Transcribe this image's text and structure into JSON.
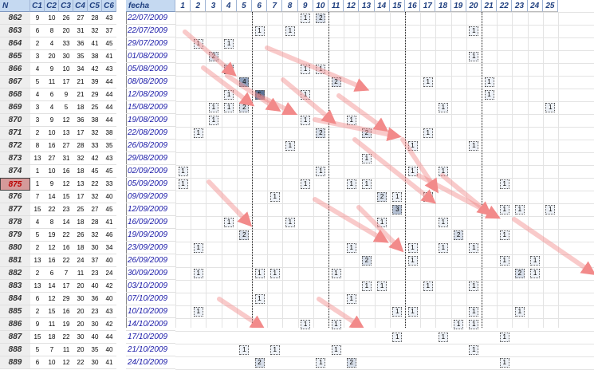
{
  "header": {
    "n": "N",
    "c": [
      "C1",
      "C2",
      "C3",
      "C4",
      "C5",
      "C6"
    ],
    "fecha": "fecha",
    "cols": [
      "1",
      "2",
      "3",
      "4",
      "5",
      "6",
      "7",
      "8",
      "9",
      "10",
      "11",
      "12",
      "13",
      "14",
      "15",
      "16",
      "17",
      "18",
      "19",
      "20",
      "21",
      "22",
      "23",
      "24",
      "25"
    ]
  },
  "selected_row": "875",
  "rows": [
    {
      "n": "862",
      "c": [
        "9",
        "10",
        "26",
        "27",
        "28",
        "43"
      ],
      "d": "22/07/2009",
      "m": [
        [
          9,
          "1"
        ],
        [
          10,
          "2"
        ]
      ]
    },
    {
      "n": "863",
      "c": [
        "6",
        "8",
        "20",
        "31",
        "32",
        "37"
      ],
      "d": "22/07/2009",
      "m": [
        [
          6,
          "1"
        ],
        [
          8,
          "1"
        ],
        [
          20,
          "1"
        ]
      ]
    },
    {
      "n": "864",
      "c": [
        "2",
        "4",
        "33",
        "36",
        "41",
        "45"
      ],
      "d": "29/07/2009",
      "m": [
        [
          2,
          "1"
        ],
        [
          4,
          "1"
        ]
      ]
    },
    {
      "n": "865",
      "c": [
        "3",
        "20",
        "30",
        "35",
        "38",
        "41"
      ],
      "d": "01/08/2009",
      "m": [
        [
          3,
          "2"
        ],
        [
          20,
          "1"
        ]
      ]
    },
    {
      "n": "866",
      "c": [
        "4",
        "9",
        "10",
        "34",
        "42",
        "43"
      ],
      "d": "05/08/2009",
      "m": [
        [
          4,
          "3"
        ],
        [
          9,
          "1"
        ],
        [
          10,
          "1"
        ]
      ]
    },
    {
      "n": "867",
      "c": [
        "5",
        "11",
        "17",
        "21",
        "39",
        "44"
      ],
      "d": "08/08/2009",
      "m": [
        [
          5,
          "4"
        ],
        [
          11,
          "2"
        ],
        [
          17,
          "1"
        ],
        [
          21,
          "1"
        ]
      ]
    },
    {
      "n": "868",
      "c": [
        "4",
        "6",
        "9",
        "21",
        "29",
        "44"
      ],
      "d": "12/08/2009",
      "m": [
        [
          4,
          "1"
        ],
        [
          6,
          "5"
        ],
        [
          9,
          "1"
        ],
        [
          21,
          "1"
        ]
      ]
    },
    {
      "n": "869",
      "c": [
        "3",
        "4",
        "5",
        "18",
        "25",
        "44"
      ],
      "d": "15/08/2009",
      "m": [
        [
          3,
          "1"
        ],
        [
          4,
          "1"
        ],
        [
          5,
          "2"
        ],
        [
          18,
          "1"
        ],
        [
          25,
          "1"
        ]
      ]
    },
    {
      "n": "870",
      "c": [
        "3",
        "9",
        "12",
        "36",
        "38",
        "44"
      ],
      "d": "19/08/2009",
      "m": [
        [
          3,
          "1"
        ],
        [
          9,
          "1"
        ],
        [
          12,
          "1"
        ]
      ]
    },
    {
      "n": "871",
      "c": [
        "2",
        "10",
        "13",
        "17",
        "32",
        "38"
      ],
      "d": "22/08/2009",
      "m": [
        [
          2,
          "1"
        ],
        [
          10,
          "2"
        ],
        [
          13,
          "2"
        ],
        [
          17,
          "1"
        ]
      ]
    },
    {
      "n": "872",
      "c": [
        "8",
        "16",
        "27",
        "28",
        "33",
        "35"
      ],
      "d": "26/08/2009",
      "m": [
        [
          8,
          "1"
        ],
        [
          16,
          "1"
        ],
        [
          20,
          "1"
        ]
      ]
    },
    {
      "n": "873",
      "c": [
        "13",
        "27",
        "31",
        "32",
        "42",
        "43"
      ],
      "d": "29/08/2009",
      "m": [
        [
          13,
          "1"
        ]
      ]
    },
    {
      "n": "874",
      "c": [
        "1",
        "10",
        "16",
        "18",
        "45",
        "45"
      ],
      "d": "02/09/2009",
      "m": [
        [
          1,
          "1"
        ],
        [
          10,
          "1"
        ],
        [
          16,
          "1"
        ],
        [
          18,
          "1"
        ]
      ]
    },
    {
      "n": "875",
      "c": [
        "1",
        "9",
        "12",
        "13",
        "22",
        "33"
      ],
      "d": "05/09/2009",
      "m": [
        [
          1,
          "1"
        ],
        [
          9,
          "1"
        ],
        [
          12,
          "1"
        ],
        [
          13,
          "1"
        ],
        [
          22,
          "1"
        ]
      ]
    },
    {
      "n": "876",
      "c": [
        "7",
        "14",
        "15",
        "17",
        "32",
        "40"
      ],
      "d": "09/09/2009",
      "m": [
        [
          7,
          "1"
        ],
        [
          14,
          "2"
        ],
        [
          15,
          "1"
        ],
        [
          17,
          "1"
        ]
      ]
    },
    {
      "n": "877",
      "c": [
        "15",
        "22",
        "23",
        "25",
        "27",
        "45"
      ],
      "d": "12/09/2009",
      "m": [
        [
          15,
          "3"
        ],
        [
          22,
          "1"
        ],
        [
          23,
          "1"
        ],
        [
          25,
          "1"
        ]
      ]
    },
    {
      "n": "878",
      "c": [
        "4",
        "8",
        "14",
        "18",
        "28",
        "41"
      ],
      "d": "16/09/2009",
      "m": [
        [
          4,
          "1"
        ],
        [
          8,
          "1"
        ],
        [
          14,
          "1"
        ],
        [
          18,
          "1"
        ]
      ]
    },
    {
      "n": "879",
      "c": [
        "5",
        "19",
        "22",
        "26",
        "32",
        "46"
      ],
      "d": "19/09/2009",
      "m": [
        [
          5,
          "2"
        ],
        [
          19,
          "2"
        ],
        [
          22,
          "1"
        ]
      ]
    },
    {
      "n": "880",
      "c": [
        "2",
        "12",
        "16",
        "18",
        "30",
        "34"
      ],
      "d": "23/09/2009",
      "m": [
        [
          2,
          "1"
        ],
        [
          12,
          "1"
        ],
        [
          16,
          "1"
        ],
        [
          18,
          "1"
        ],
        [
          20,
          "1"
        ]
      ]
    },
    {
      "n": "881",
      "c": [
        "13",
        "16",
        "22",
        "24",
        "37",
        "40"
      ],
      "d": "26/09/2009",
      "m": [
        [
          13,
          "2"
        ],
        [
          16,
          "1"
        ],
        [
          22,
          "1"
        ],
        [
          24,
          "1"
        ]
      ]
    },
    {
      "n": "882",
      "c": [
        "2",
        "6",
        "7",
        "11",
        "23",
        "24"
      ],
      "d": "30/09/2009",
      "m": [
        [
          2,
          "1"
        ],
        [
          6,
          "1"
        ],
        [
          7,
          "1"
        ],
        [
          11,
          "1"
        ],
        [
          23,
          "2"
        ],
        [
          24,
          "1"
        ]
      ]
    },
    {
      "n": "883",
      "c": [
        "13",
        "14",
        "17",
        "20",
        "40",
        "42"
      ],
      "d": "03/10/2009",
      "m": [
        [
          13,
          "1"
        ],
        [
          14,
          "1"
        ],
        [
          17,
          "1"
        ],
        [
          20,
          "1"
        ]
      ]
    },
    {
      "n": "884",
      "c": [
        "6",
        "12",
        "29",
        "30",
        "36",
        "40"
      ],
      "d": "07/10/2009",
      "m": [
        [
          6,
          "1"
        ],
        [
          12,
          "1"
        ]
      ]
    },
    {
      "n": "885",
      "c": [
        "2",
        "15",
        "16",
        "20",
        "23",
        "43"
      ],
      "d": "10/10/2009",
      "m": [
        [
          2,
          "1"
        ],
        [
          15,
          "1"
        ],
        [
          16,
          "1"
        ],
        [
          20,
          "1"
        ],
        [
          23,
          "1"
        ]
      ]
    },
    {
      "n": "886",
      "c": [
        "9",
        "11",
        "19",
        "20",
        "30",
        "42"
      ],
      "d": "14/10/2009",
      "m": [
        [
          9,
          "1"
        ],
        [
          11,
          "1"
        ],
        [
          19,
          "1"
        ],
        [
          20,
          "1"
        ]
      ]
    },
    {
      "n": "887",
      "c": [
        "15",
        "18",
        "22",
        "30",
        "40",
        "44"
      ],
      "d": "17/10/2009",
      "m": [
        [
          15,
          "1"
        ],
        [
          18,
          "1"
        ],
        [
          22,
          "1"
        ]
      ]
    },
    {
      "n": "888",
      "c": [
        "5",
        "7",
        "11",
        "20",
        "35",
        "40"
      ],
      "d": "21/10/2009",
      "m": [
        [
          5,
          "1"
        ],
        [
          7,
          "1"
        ],
        [
          11,
          "1"
        ],
        [
          20,
          "1"
        ]
      ]
    },
    {
      "n": "889",
      "c": [
        "6",
        "10",
        "12",
        "22",
        "30",
        "41"
      ],
      "d": "24/10/2009",
      "m": [
        [
          6,
          "2"
        ],
        [
          10,
          "1"
        ],
        [
          12,
          "2"
        ],
        [
          22,
          "1"
        ]
      ]
    }
  ],
  "colors": {
    "header_bg": "#c5d9f1",
    "box_fill_levels": [
      "#ffffff",
      "#eef2f8",
      "#d8dfea",
      "#b5c1d4",
      "#8ea0bc",
      "#5d7396"
    ],
    "arrow": "#f28a8a",
    "selected_cell": "#d59a9a"
  }
}
